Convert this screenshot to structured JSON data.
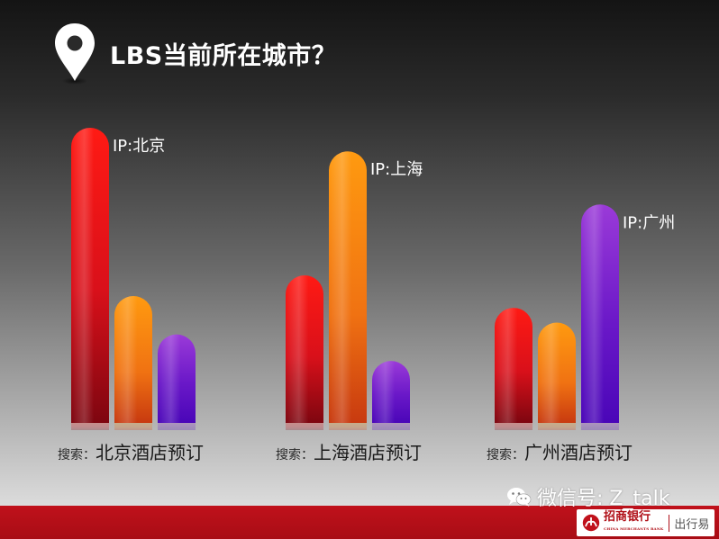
{
  "header": {
    "title": "LBS当前所在城市？"
  },
  "chart_data": {
    "type": "bar",
    "title": "LBS当前所在城市？",
    "series_colors": [
      "#e4141a",
      "#f08a10",
      "#7a22d0"
    ],
    "groups": [
      {
        "search_prefix": "搜索：",
        "search_query": "北京酒店预订",
        "ip_label": "IP:北京",
        "ip_series_index": 0,
        "values": [
          100,
          43,
          30
        ]
      },
      {
        "search_prefix": "搜索：",
        "search_query": "上海酒店预订",
        "ip_label": "IP:上海",
        "ip_series_index": 1,
        "values": [
          50,
          92,
          21
        ]
      },
      {
        "search_prefix": "搜索：",
        "search_query": "广州酒店预订",
        "ip_label": "IP:广州",
        "ip_series_index": 2,
        "values": [
          39,
          34,
          74
        ]
      }
    ],
    "ylim": [
      0,
      100
    ],
    "grid": false,
    "legend": "none"
  },
  "footer": {
    "wechat_text": "微信号: Z_talk",
    "bank_name": "招商银行",
    "bank_name_en": "CHINA MERCHANTS BANK",
    "bank_sub": "出行易",
    "wechat_icon": "wechat-icon",
    "bank_logo": "cmb-logo"
  }
}
